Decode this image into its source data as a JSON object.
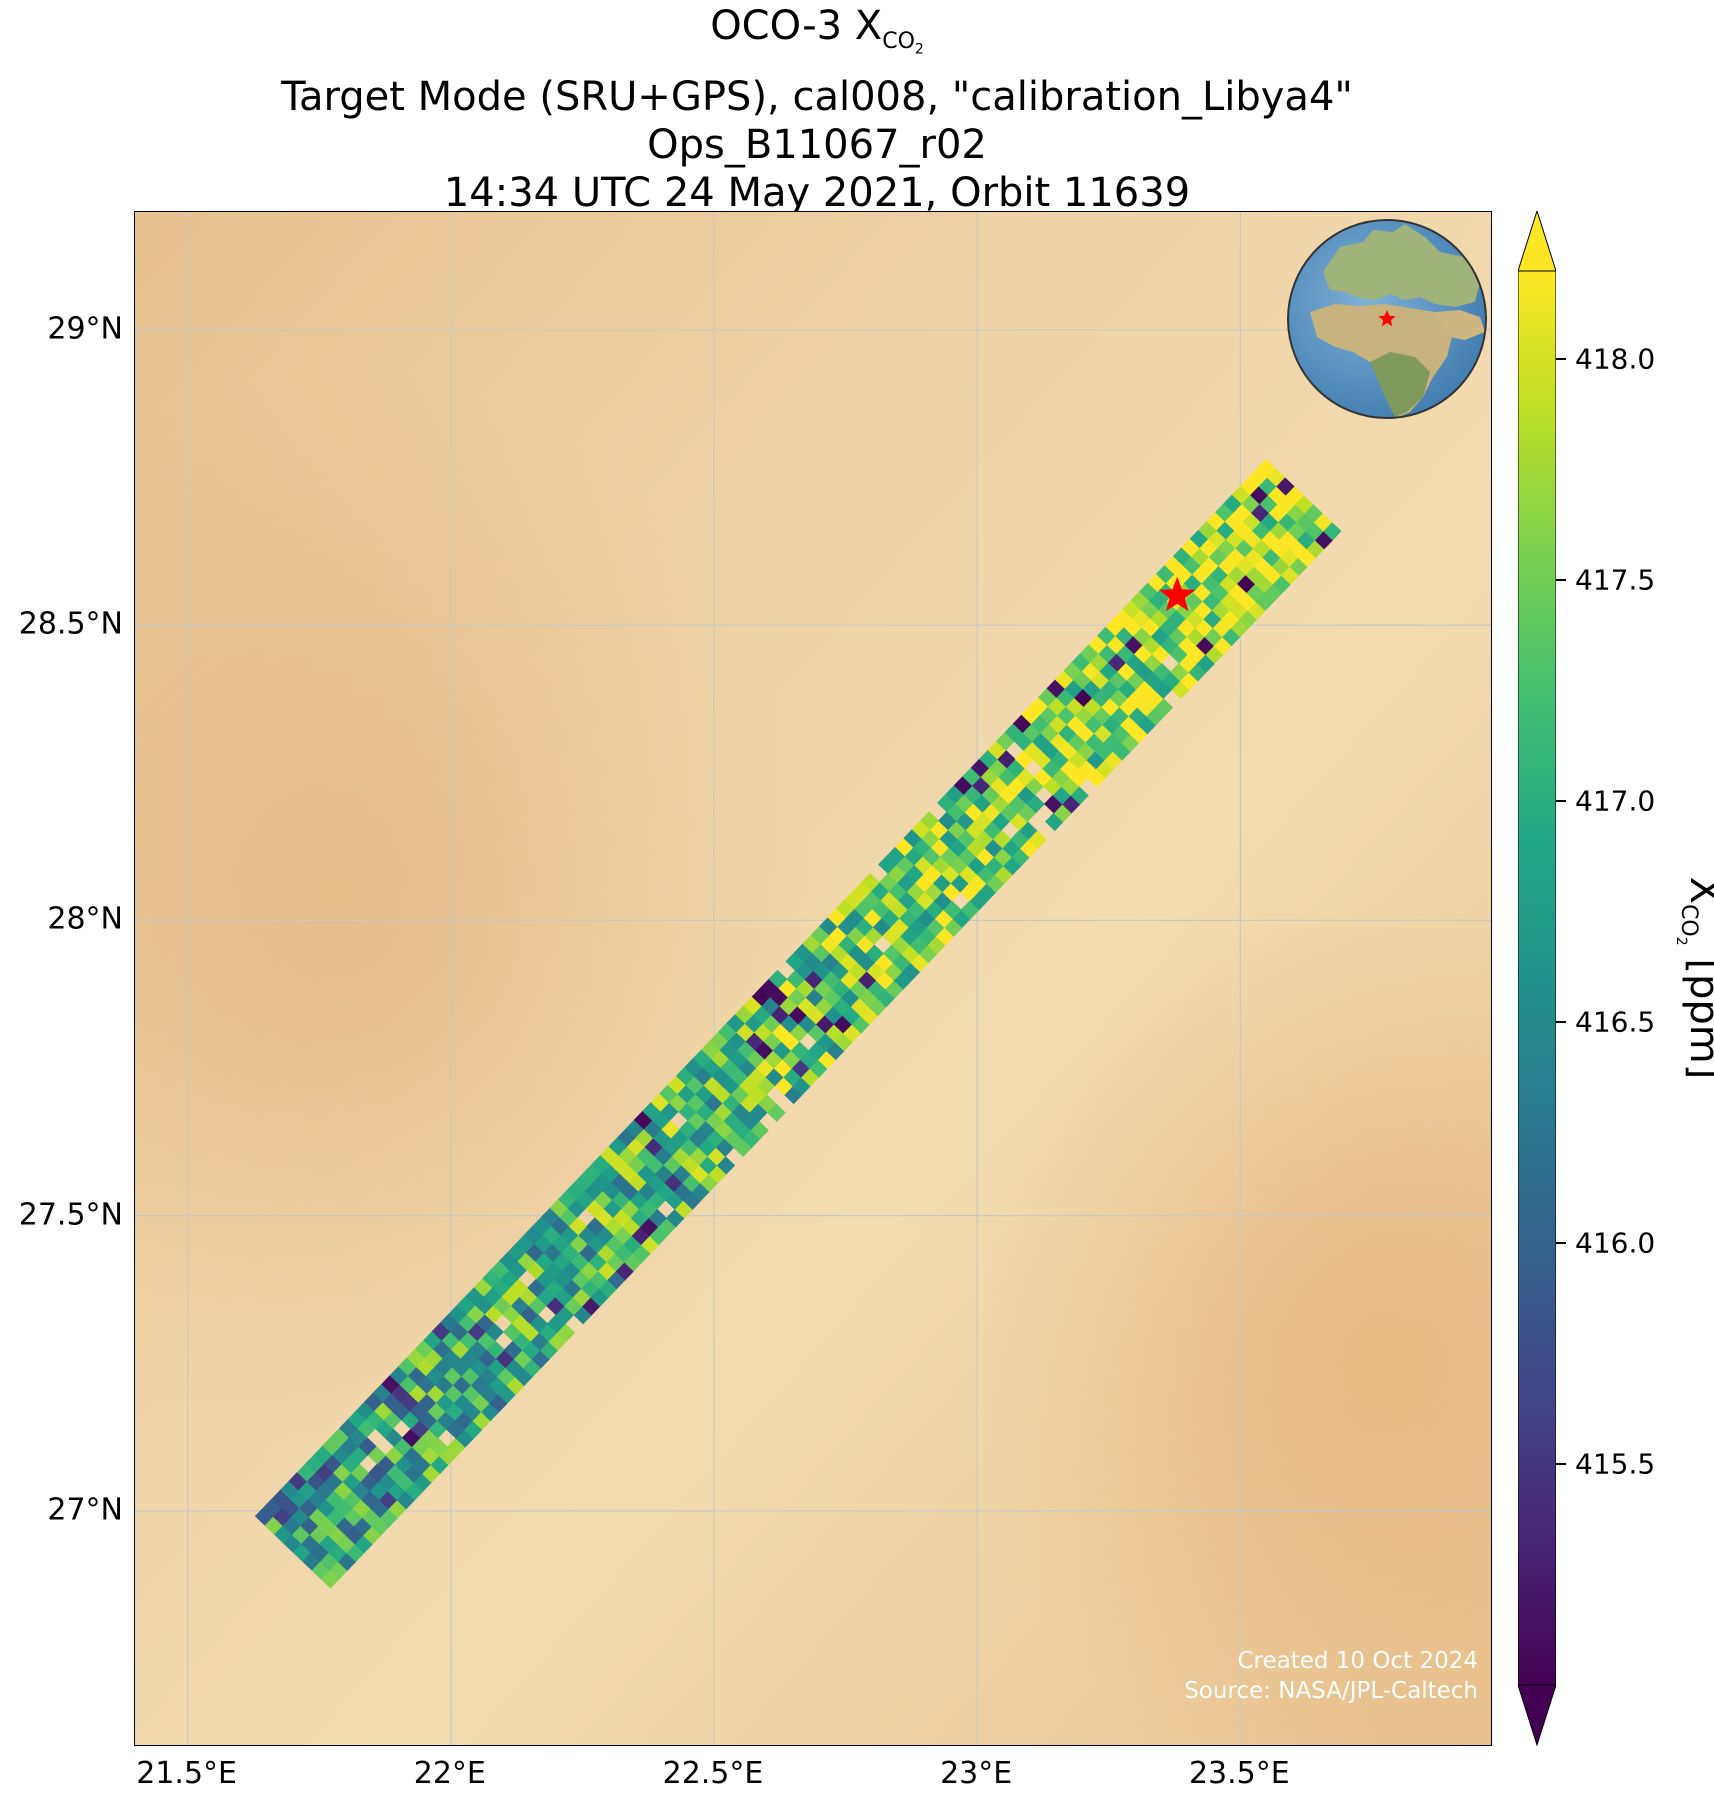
{
  "title": {
    "line1_prefix": "OCO-3 X",
    "line1_sub": "CO",
    "line1_subsub": "2",
    "line2": "Target Mode (SRU+GPS), cal008, \"calibration_Libya4\"",
    "line3": "Ops_B11067_r02",
    "line4": "14:34 UTC 24 May 2021, Orbit 11639"
  },
  "credits": {
    "created": "Created 10 Oct 2024",
    "source": "Source: NASA/JPL-Caltech"
  },
  "colorbar": {
    "label_prefix": "X",
    "label_sub": "CO",
    "label_subsub": "2",
    "label_suffix": " [ppm]",
    "colormap": "viridis",
    "min": 415.0,
    "max": 418.2,
    "extend": "both",
    "ticks": [
      "415.5",
      "416.0",
      "416.5",
      "417.0",
      "417.5",
      "418.0"
    ]
  },
  "chart_data": {
    "type": "heatmap",
    "plot_kind": "satellite swath map",
    "xlim": [
      21.4,
      23.98
    ],
    "ylim": [
      26.6,
      29.2
    ],
    "x_ticks": [
      "21.5°E",
      "22°E",
      "22.5°E",
      "23°E",
      "23.5°E"
    ],
    "y_ticks": [
      "29°N",
      "28.5°N",
      "28°N",
      "27.5°N",
      "27°N"
    ],
    "grid": true,
    "target_site": {
      "lon": 23.38,
      "lat": 28.55,
      "marker": "red star"
    },
    "swath": {
      "start": {
        "lon": 21.7,
        "lat": 26.93
      },
      "end": {
        "lon": 23.62,
        "lat": 28.72
      },
      "value_range": [
        415.0,
        418.2
      ],
      "trend": "values rise from ~416.8 ppm at the south-west end to ~418 ppm at the north-east end"
    },
    "inset": "orthographic globe centred on Africa/Europe with red star at target"
  },
  "colors": {
    "desert_base": "#eccb9a",
    "grid": "#c8c8c8",
    "marker": "#ff0000"
  }
}
